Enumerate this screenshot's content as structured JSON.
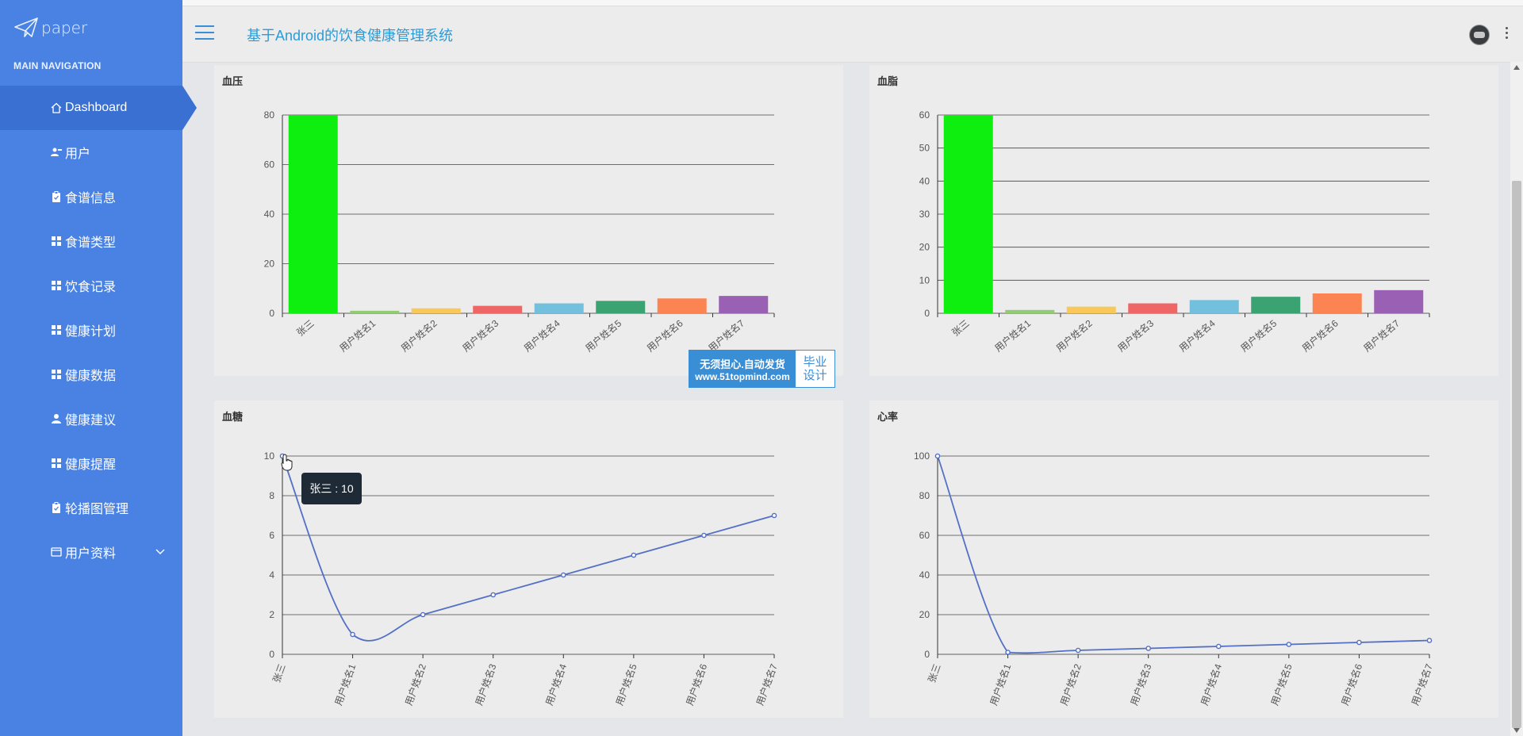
{
  "brand": {
    "name": "paper",
    "logo_icon": "paper-plane-icon"
  },
  "nav_title": "MAIN NAVIGATION",
  "nav": [
    {
      "label": "Dashboard",
      "icon": "home-icon",
      "active": true
    },
    {
      "label": "用户",
      "icon": "users-icon"
    },
    {
      "label": "食谱信息",
      "icon": "clipboard-icon"
    },
    {
      "label": "食谱类型",
      "icon": "grid-icon"
    },
    {
      "label": "饮食记录",
      "icon": "grid-icon"
    },
    {
      "label": "健康计划",
      "icon": "grid-icon"
    },
    {
      "label": "健康数据",
      "icon": "grid-icon"
    },
    {
      "label": "健康建议",
      "icon": "user-icon"
    },
    {
      "label": "健康提醒",
      "icon": "grid-icon"
    },
    {
      "label": "轮播图管理",
      "icon": "clipboard-icon"
    },
    {
      "label": "用户资料",
      "icon": "card-icon",
      "has_submenu": true
    }
  ],
  "header": {
    "title": "基于Android的饮食健康管理系统"
  },
  "tooltip": {
    "text": "张三 : 10"
  },
  "ad": {
    "line1": "无须担心.自动发货",
    "line2": "www.51topmind.com",
    "side1": "毕业",
    "side2": "设计"
  },
  "charts": {
    "bp": {
      "title": "血压"
    },
    "lipid": {
      "title": "血脂"
    },
    "sugar": {
      "title": "血糖"
    },
    "hr": {
      "title": "心率"
    }
  },
  "chart_data": [
    {
      "id": "bp",
      "type": "bar",
      "title": "血压",
      "categories": [
        "张三",
        "用户姓名1",
        "用户姓名2",
        "用户姓名3",
        "用户姓名4",
        "用户姓名5",
        "用户姓名6",
        "用户姓名7"
      ],
      "values": [
        80,
        1,
        2,
        3,
        4,
        5,
        6,
        7
      ],
      "ylim": [
        0,
        80
      ],
      "yticks": [
        0,
        20,
        40,
        60,
        80
      ],
      "colors": [
        "#0fef0f",
        "#91cc75",
        "#fac858",
        "#ee6666",
        "#73c0de",
        "#3ba272",
        "#fc8452",
        "#9a60b4"
      ],
      "grid": true
    },
    {
      "id": "lipid",
      "type": "bar",
      "title": "血脂",
      "categories": [
        "张三",
        "用户姓名1",
        "用户姓名2",
        "用户姓名3",
        "用户姓名4",
        "用户姓名5",
        "用户姓名6",
        "用户姓名7"
      ],
      "values": [
        60,
        1,
        2,
        3,
        4,
        5,
        6,
        7
      ],
      "ylim": [
        0,
        60
      ],
      "yticks": [
        0,
        10,
        20,
        30,
        40,
        50,
        60
      ],
      "colors": [
        "#0fef0f",
        "#91cc75",
        "#fac858",
        "#ee6666",
        "#73c0de",
        "#3ba272",
        "#fc8452",
        "#9a60b4"
      ],
      "grid": true
    },
    {
      "id": "sugar",
      "type": "line",
      "title": "血糖",
      "categories": [
        "张三",
        "用户姓名1",
        "用户姓名2",
        "用户姓名3",
        "用户姓名4",
        "用户姓名5",
        "用户姓名6",
        "用户姓名7"
      ],
      "values": [
        10,
        1,
        2,
        3,
        4,
        5,
        6,
        7
      ],
      "ylim": [
        0,
        10
      ],
      "yticks": [
        0,
        2,
        4,
        6,
        8,
        10
      ],
      "color": "#5470c6",
      "smooth": true,
      "grid": true
    },
    {
      "id": "hr",
      "type": "line",
      "title": "心率",
      "categories": [
        "张三",
        "用户姓名1",
        "用户姓名2",
        "用户姓名3",
        "用户姓名4",
        "用户姓名5",
        "用户姓名6",
        "用户姓名7"
      ],
      "values": [
        100,
        1,
        2,
        3,
        4,
        5,
        6,
        7
      ],
      "ylim": [
        0,
        100
      ],
      "yticks": [
        0,
        20,
        40,
        60,
        80,
        100
      ],
      "color": "#5470c6",
      "smooth": true,
      "grid": true
    }
  ]
}
